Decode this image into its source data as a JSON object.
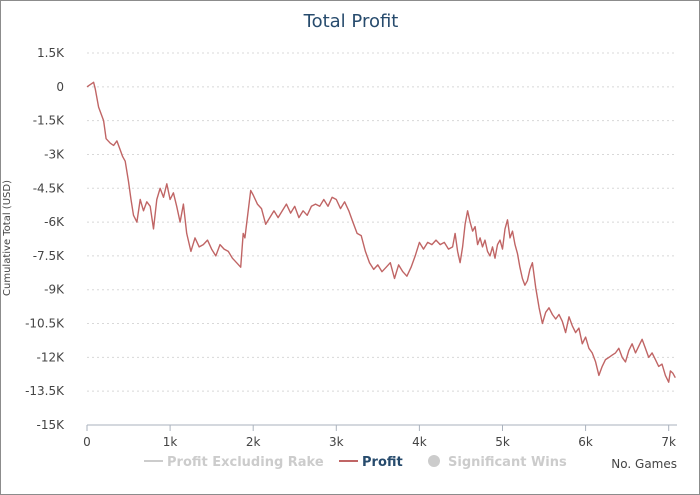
{
  "chart_data": {
    "type": "line",
    "title": "Total Profit",
    "xlabel": "No. Games",
    "ylabel": "Cumulative Total (USD)",
    "xlim": [
      0,
      7100
    ],
    "ylim": [
      -15000,
      1500
    ],
    "x_ticks": [
      0,
      1000,
      2000,
      3000,
      4000,
      5000,
      6000,
      7000
    ],
    "x_tick_labels": [
      "0",
      "1k",
      "2k",
      "3k",
      "4k",
      "5k",
      "6k",
      "7k"
    ],
    "y_ticks": [
      1500,
      0,
      -1500,
      -3000,
      -4500,
      -6000,
      -7500,
      -9000,
      -10500,
      -12000,
      -13500,
      -15000
    ],
    "y_tick_labels": [
      "1.5K",
      "0",
      "-1.5K",
      "-3K",
      "-4.5K",
      "-6K",
      "-7.5K",
      "-9K",
      "-10.5K",
      "-12K",
      "-13.5K",
      "-15K"
    ],
    "grid": "horizontal dashed",
    "legend_position": "bottom-center",
    "legend": [
      {
        "name": "Profit Excluding Rake",
        "symbol": "line",
        "color": "#cccccc",
        "active": false
      },
      {
        "name": "Profit",
        "symbol": "line",
        "color": "#c06565",
        "active": true
      },
      {
        "name": "Significant Wins",
        "symbol": "circle",
        "color": "#cccccc",
        "active": false
      }
    ],
    "series": [
      {
        "name": "Profit",
        "color": "#c06565",
        "points": [
          [
            0,
            0
          ],
          [
            40,
            100
          ],
          [
            80,
            200
          ],
          [
            100,
            -100
          ],
          [
            140,
            -900
          ],
          [
            170,
            -1200
          ],
          [
            200,
            -1500
          ],
          [
            230,
            -2300
          ],
          [
            280,
            -2500
          ],
          [
            320,
            -2600
          ],
          [
            360,
            -2400
          ],
          [
            400,
            -2800
          ],
          [
            430,
            -3100
          ],
          [
            460,
            -3300
          ],
          [
            500,
            -4200
          ],
          [
            530,
            -5000
          ],
          [
            560,
            -5700
          ],
          [
            600,
            -6000
          ],
          [
            640,
            -5000
          ],
          [
            680,
            -5500
          ],
          [
            720,
            -5100
          ],
          [
            760,
            -5300
          ],
          [
            800,
            -6300
          ],
          [
            840,
            -5000
          ],
          [
            880,
            -4500
          ],
          [
            920,
            -4900
          ],
          [
            960,
            -4300
          ],
          [
            1000,
            -5000
          ],
          [
            1040,
            -4700
          ],
          [
            1080,
            -5300
          ],
          [
            1120,
            -6000
          ],
          [
            1160,
            -5200
          ],
          [
            1200,
            -6500
          ],
          [
            1250,
            -7300
          ],
          [
            1300,
            -6700
          ],
          [
            1350,
            -7100
          ],
          [
            1400,
            -7000
          ],
          [
            1450,
            -6800
          ],
          [
            1500,
            -7200
          ],
          [
            1550,
            -7500
          ],
          [
            1600,
            -7000
          ],
          [
            1650,
            -7200
          ],
          [
            1700,
            -7300
          ],
          [
            1750,
            -7600
          ],
          [
            1800,
            -7800
          ],
          [
            1850,
            -8000
          ],
          [
            1880,
            -6500
          ],
          [
            1900,
            -6700
          ],
          [
            1940,
            -5500
          ],
          [
            1970,
            -4600
          ],
          [
            2000,
            -4800
          ],
          [
            2050,
            -5200
          ],
          [
            2100,
            -5400
          ],
          [
            2150,
            -6100
          ],
          [
            2200,
            -5800
          ],
          [
            2250,
            -5500
          ],
          [
            2300,
            -5800
          ],
          [
            2350,
            -5500
          ],
          [
            2400,
            -5200
          ],
          [
            2450,
            -5600
          ],
          [
            2500,
            -5300
          ],
          [
            2550,
            -5800
          ],
          [
            2600,
            -5500
          ],
          [
            2650,
            -5700
          ],
          [
            2700,
            -5300
          ],
          [
            2750,
            -5200
          ],
          [
            2800,
            -5300
          ],
          [
            2850,
            -5000
          ],
          [
            2900,
            -5300
          ],
          [
            2950,
            -4900
          ],
          [
            3000,
            -5000
          ],
          [
            3050,
            -5400
          ],
          [
            3100,
            -5100
          ],
          [
            3150,
            -5500
          ],
          [
            3200,
            -6000
          ],
          [
            3250,
            -6500
          ],
          [
            3300,
            -6600
          ],
          [
            3350,
            -7300
          ],
          [
            3400,
            -7800
          ],
          [
            3450,
            -8100
          ],
          [
            3500,
            -7900
          ],
          [
            3550,
            -8200
          ],
          [
            3600,
            -8000
          ],
          [
            3650,
            -7800
          ],
          [
            3700,
            -8500
          ],
          [
            3750,
            -7900
          ],
          [
            3800,
            -8200
          ],
          [
            3850,
            -8400
          ],
          [
            3900,
            -8000
          ],
          [
            3950,
            -7500
          ],
          [
            4000,
            -6900
          ],
          [
            4050,
            -7200
          ],
          [
            4100,
            -6900
          ],
          [
            4150,
            -7000
          ],
          [
            4200,
            -6800
          ],
          [
            4250,
            -7000
          ],
          [
            4300,
            -6900
          ],
          [
            4350,
            -7200
          ],
          [
            4400,
            -7100
          ],
          [
            4430,
            -6500
          ],
          [
            4460,
            -7300
          ],
          [
            4490,
            -7800
          ],
          [
            4520,
            -7100
          ],
          [
            4550,
            -6100
          ],
          [
            4580,
            -5500
          ],
          [
            4610,
            -6000
          ],
          [
            4640,
            -6400
          ],
          [
            4670,
            -6200
          ],
          [
            4700,
            -7000
          ],
          [
            4730,
            -6700
          ],
          [
            4760,
            -7100
          ],
          [
            4790,
            -6800
          ],
          [
            4820,
            -7300
          ],
          [
            4850,
            -7500
          ],
          [
            4880,
            -7100
          ],
          [
            4910,
            -7600
          ],
          [
            4940,
            -7000
          ],
          [
            4970,
            -6800
          ],
          [
            5000,
            -7200
          ],
          [
            5030,
            -6300
          ],
          [
            5060,
            -5900
          ],
          [
            5090,
            -6700
          ],
          [
            5120,
            -6400
          ],
          [
            5150,
            -7000
          ],
          [
            5180,
            -7400
          ],
          [
            5210,
            -8000
          ],
          [
            5240,
            -8500
          ],
          [
            5270,
            -8800
          ],
          [
            5300,
            -8600
          ],
          [
            5330,
            -8100
          ],
          [
            5360,
            -7800
          ],
          [
            5400,
            -8900
          ],
          [
            5440,
            -9800
          ],
          [
            5480,
            -10500
          ],
          [
            5520,
            -10000
          ],
          [
            5560,
            -9800
          ],
          [
            5600,
            -10100
          ],
          [
            5640,
            -10300
          ],
          [
            5680,
            -10100
          ],
          [
            5720,
            -10400
          ],
          [
            5760,
            -10900
          ],
          [
            5800,
            -10200
          ],
          [
            5840,
            -10600
          ],
          [
            5880,
            -10900
          ],
          [
            5920,
            -10700
          ],
          [
            5960,
            -11400
          ],
          [
            6000,
            -11100
          ],
          [
            6040,
            -11600
          ],
          [
            6080,
            -11800
          ],
          [
            6120,
            -12200
          ],
          [
            6160,
            -12800
          ],
          [
            6200,
            -12400
          ],
          [
            6240,
            -12100
          ],
          [
            6280,
            -12000
          ],
          [
            6320,
            -11900
          ],
          [
            6360,
            -11800
          ],
          [
            6400,
            -11600
          ],
          [
            6440,
            -12000
          ],
          [
            6480,
            -12200
          ],
          [
            6520,
            -11700
          ],
          [
            6560,
            -11400
          ],
          [
            6600,
            -11800
          ],
          [
            6640,
            -11500
          ],
          [
            6680,
            -11200
          ],
          [
            6720,
            -11600
          ],
          [
            6760,
            -12000
          ],
          [
            6800,
            -11800
          ],
          [
            6840,
            -12100
          ],
          [
            6880,
            -12400
          ],
          [
            6920,
            -12300
          ],
          [
            6960,
            -12800
          ],
          [
            7000,
            -13100
          ],
          [
            7020,
            -12600
          ],
          [
            7050,
            -12700
          ],
          [
            7080,
            -12900
          ]
        ]
      }
    ]
  }
}
